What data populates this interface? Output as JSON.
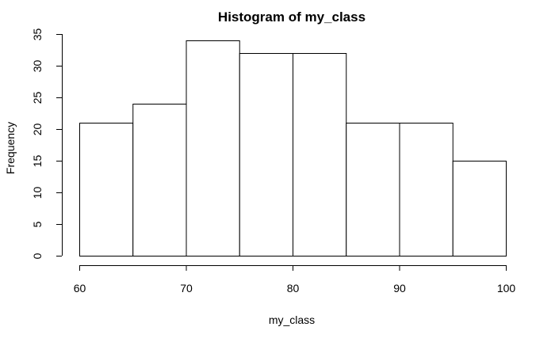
{
  "chart_data": {
    "type": "bar",
    "title": "Histogram of my_class",
    "xlabel": "my_class",
    "ylabel": "Frequency",
    "bins": [
      {
        "start": 60,
        "end": 65,
        "count": 21
      },
      {
        "start": 65,
        "end": 70,
        "count": 24
      },
      {
        "start": 70,
        "end": 75,
        "count": 34
      },
      {
        "start": 75,
        "end": 80,
        "count": 32
      },
      {
        "start": 80,
        "end": 85,
        "count": 32
      },
      {
        "start": 85,
        "end": 90,
        "count": 21
      },
      {
        "start": 90,
        "end": 95,
        "count": 21
      },
      {
        "start": 95,
        "end": 100,
        "count": 15
      }
    ],
    "xlim": [
      60,
      100
    ],
    "ylim": [
      0,
      35
    ],
    "xticks": [
      60,
      70,
      80,
      90,
      100
    ],
    "yticks": [
      0,
      5,
      10,
      15,
      20,
      25,
      30,
      35
    ],
    "bar_fill": "#ffffff",
    "bar_stroke": "#000000",
    "grid": false,
    "legend": "none"
  }
}
